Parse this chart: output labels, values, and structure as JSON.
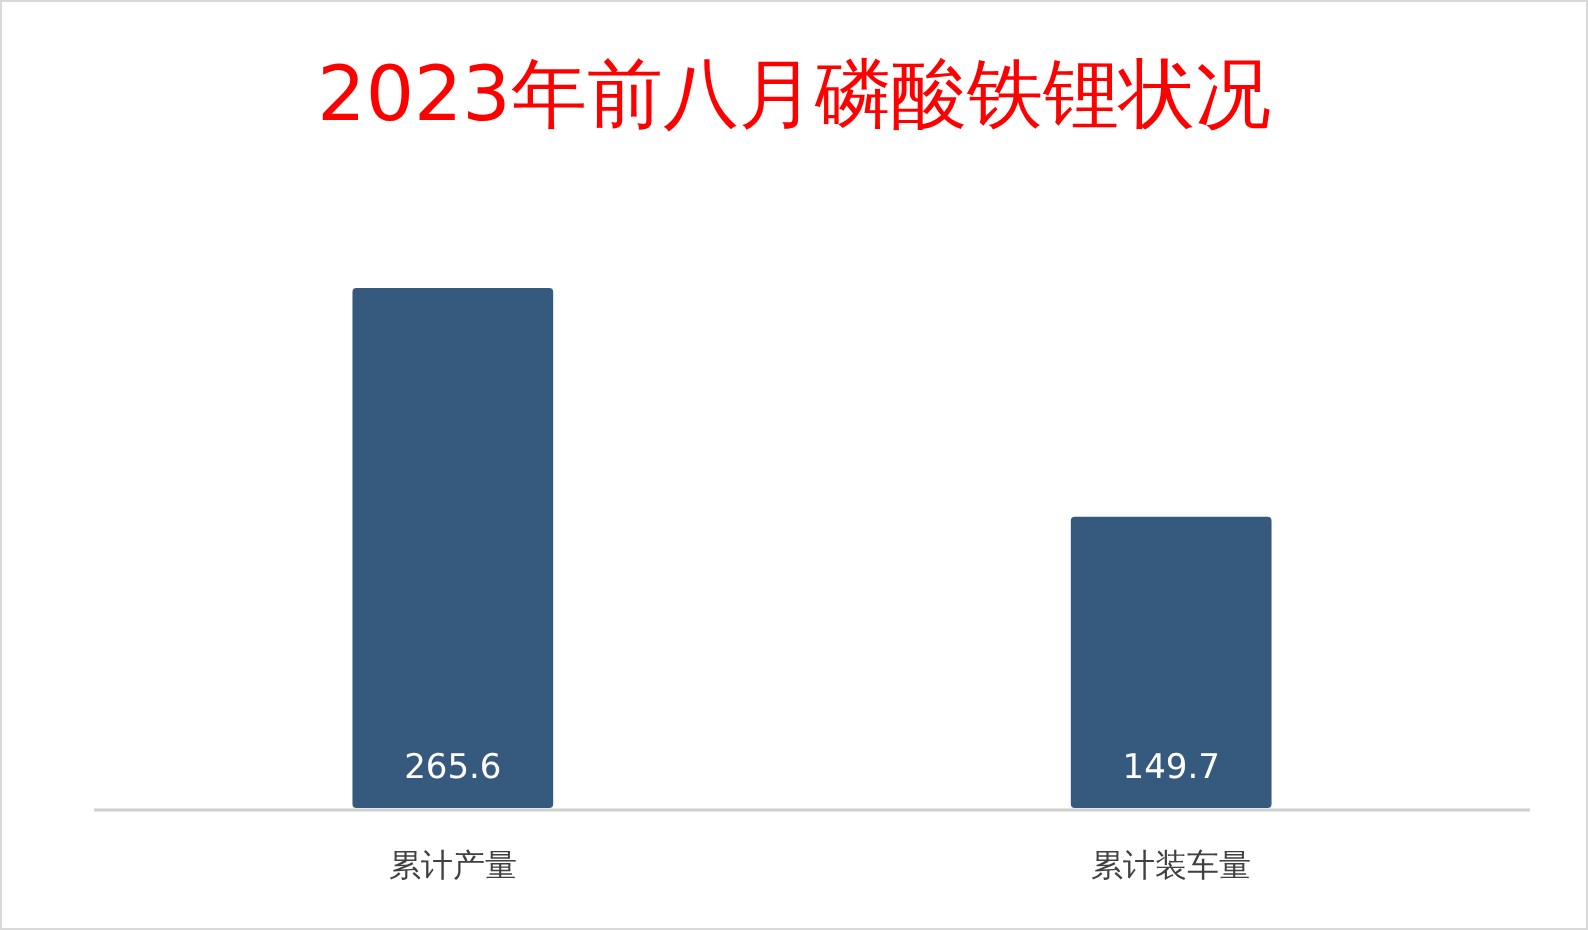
{
  "chart_data": {
    "type": "bar",
    "title": "2023年前八月磷酸铁锂状况",
    "categories": [
      "累计产量",
      "累计装车量"
    ],
    "values": [
      265.6,
      149.7
    ],
    "color": "#365a7d",
    "data_labels": true
  }
}
